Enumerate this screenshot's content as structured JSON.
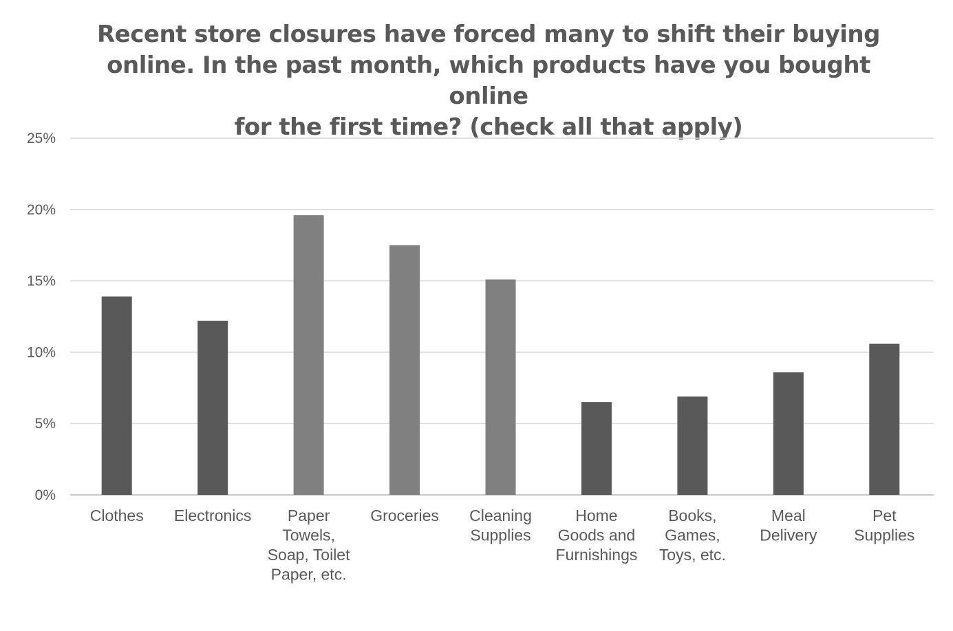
{
  "chart_data": {
    "type": "bar",
    "title_lines": [
      "Recent store closures have forced many to shift their buying",
      "online. In the past month, which products have you bought online",
      "for the first time? (check all that apply)"
    ],
    "categories": [
      [
        "Clothes"
      ],
      [
        "Electronics"
      ],
      [
        "Paper",
        "Towels,",
        "Soap, Toilet",
        "Paper, etc."
      ],
      [
        "Groceries"
      ],
      [
        "Cleaning",
        "Supplies"
      ],
      [
        "Home",
        "Goods and",
        "Furnishings"
      ],
      [
        "Books,",
        "Games,",
        "Toys, etc."
      ],
      [
        "Meal",
        "Delivery"
      ],
      [
        "Pet",
        "Supplies"
      ]
    ],
    "values": [
      13.9,
      12.2,
      19.6,
      17.5,
      15.1,
      6.5,
      6.9,
      8.6,
      10.6
    ],
    "bar_colors": [
      "#595959",
      "#595959",
      "#808080",
      "#808080",
      "#808080",
      "#595959",
      "#595959",
      "#595959",
      "#595959"
    ],
    "y_ticks": [
      "0%",
      "5%",
      "10%",
      "15%",
      "20%",
      "25%"
    ],
    "ylim": [
      0,
      25
    ],
    "xlabel": "",
    "ylabel": "",
    "grid": true,
    "legend": "none",
    "colors": {
      "gridline": "#d9d9d9",
      "text": "#595959"
    }
  }
}
